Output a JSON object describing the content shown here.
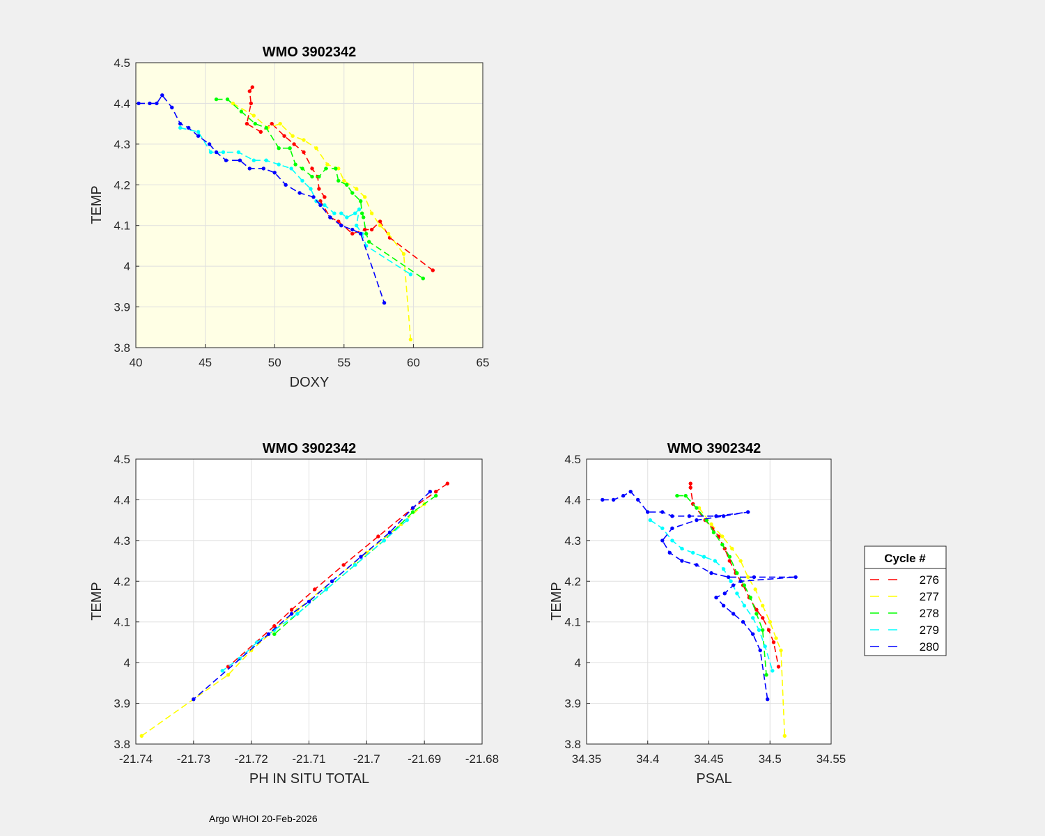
{
  "footer": "Argo WHOI 20-Feb-2026",
  "colors": {
    "figure_bg": "#f0f0f0",
    "axes_bg_doxy": "#ffffe5",
    "axes_bg": "#ffffff",
    "grid": "#dfdfdf",
    "axis": "#262626"
  },
  "legend": {
    "title": "Cycle #",
    "entries": [
      {
        "label": "276",
        "color": "#ff0000"
      },
      {
        "label": "277",
        "color": "#ffff00"
      },
      {
        "label": "278",
        "color": "#00ff00"
      },
      {
        "label": "279",
        "color": "#00ffff"
      },
      {
        "label": "280",
        "color": "#0000ff"
      }
    ]
  },
  "chart_data": [
    {
      "id": "doxy",
      "type": "line",
      "title": "WMO 3902342",
      "xlabel": "DOXY",
      "ylabel": "TEMP",
      "xlim": [
        40,
        65
      ],
      "ylim": [
        3.8,
        4.5
      ],
      "xticks": [
        40,
        45,
        50,
        55,
        60,
        65
      ],
      "xtick_labels": [
        "40",
        "45",
        "50",
        "55",
        "60",
        "65"
      ],
      "yticks": [
        3.8,
        3.9,
        4.0,
        4.1,
        4.2,
        4.3,
        4.4,
        4.5
      ],
      "ytick_labels": [
        "3.8",
        "3.9",
        "4",
        "4.1",
        "4.2",
        "4.3",
        "4.4",
        "4.5"
      ],
      "grid": true,
      "series": [
        {
          "name": "276",
          "color": "#ff0000",
          "x": [
            48.4,
            48.2,
            48.3,
            48.0,
            49.0,
            49.8,
            50.7,
            51.4,
            52.1,
            52.7,
            53.1,
            53.2,
            53.6,
            53.3,
            54.0,
            54.6,
            55.6,
            56.5,
            57.0,
            57.6,
            58.3,
            61.4
          ],
          "y": [
            4.44,
            4.43,
            4.4,
            4.35,
            4.33,
            4.35,
            4.32,
            4.3,
            4.28,
            4.24,
            4.22,
            4.19,
            4.17,
            4.16,
            4.12,
            4.11,
            4.08,
            4.09,
            4.09,
            4.11,
            4.07,
            3.99
          ]
        },
        {
          "name": "277",
          "color": "#ffff00",
          "x": [
            47.0,
            48.5,
            49.5,
            50.4,
            51.3,
            52.1,
            53.0,
            53.8,
            54.6,
            55.0,
            55.9,
            56.5,
            57.0,
            57.6,
            58.2,
            59.3,
            59.8
          ],
          "y": [
            4.4,
            4.37,
            4.34,
            4.35,
            4.32,
            4.31,
            4.29,
            4.25,
            4.24,
            4.21,
            4.19,
            4.17,
            4.13,
            4.1,
            4.08,
            4.03,
            3.82
          ]
        },
        {
          "name": "278",
          "color": "#00ff00",
          "x": [
            45.8,
            46.6,
            47.6,
            48.6,
            49.4,
            50.3,
            51.1,
            51.5,
            52.0,
            52.7,
            53.2,
            53.7,
            54.4,
            54.6,
            55.2,
            55.6,
            56.2,
            56.3,
            56.4,
            56.6,
            56.8,
            60.7
          ],
          "y": [
            4.41,
            4.41,
            4.38,
            4.35,
            4.34,
            4.29,
            4.29,
            4.25,
            4.24,
            4.22,
            4.22,
            4.24,
            4.24,
            4.21,
            4.2,
            4.18,
            4.16,
            4.13,
            4.12,
            4.08,
            4.06,
            3.97
          ]
        },
        {
          "name": "279",
          "color": "#00ffff",
          "x": [
            43.2,
            44.5,
            45.4,
            46.3,
            47.4,
            48.5,
            49.4,
            50.3,
            51.2,
            52.0,
            52.6,
            53.0,
            53.6,
            54.3,
            54.8,
            55.2,
            55.8,
            56.1,
            55.9,
            56.3,
            56.6,
            59.8
          ],
          "y": [
            4.34,
            4.33,
            4.28,
            4.28,
            4.28,
            4.26,
            4.26,
            4.25,
            4.24,
            4.21,
            4.19,
            4.16,
            4.15,
            4.13,
            4.13,
            4.12,
            4.13,
            4.14,
            4.1,
            4.08,
            4.05,
            3.98
          ]
        },
        {
          "name": "280",
          "color": "#0000ff",
          "x": [
            40.2,
            41.0,
            41.5,
            41.9,
            42.6,
            43.2,
            43.8,
            44.5,
            45.3,
            45.8,
            46.5,
            47.5,
            48.2,
            49.2,
            50.0,
            50.8,
            51.8,
            52.8,
            53.3,
            54.0,
            54.8,
            55.6,
            56.2,
            57.9
          ],
          "y": [
            4.4,
            4.4,
            4.4,
            4.42,
            4.39,
            4.35,
            4.34,
            4.32,
            4.3,
            4.28,
            4.26,
            4.26,
            4.24,
            4.24,
            4.23,
            4.2,
            4.18,
            4.17,
            4.15,
            4.12,
            4.1,
            4.09,
            4.08,
            3.91
          ]
        }
      ]
    },
    {
      "id": "ph",
      "type": "line",
      "title": "WMO 3902342",
      "xlabel": "PH IN SITU TOTAL",
      "ylabel": "TEMP",
      "xlim": [
        -21.74,
        -21.68
      ],
      "ylim": [
        3.8,
        4.5
      ],
      "xticks": [
        -21.74,
        -21.73,
        -21.72,
        -21.71,
        -21.7,
        -21.69,
        -21.68
      ],
      "xtick_labels": [
        "-21.74",
        "-21.73",
        "-21.72",
        "-21.71",
        "-21.7",
        "-21.69",
        "-21.68"
      ],
      "yticks": [
        3.8,
        3.9,
        4.0,
        4.1,
        4.2,
        4.3,
        4.4,
        4.5
      ],
      "ytick_labels": [
        "3.8",
        "3.9",
        "4",
        "4.1",
        "4.2",
        "4.3",
        "4.4",
        "4.5"
      ],
      "grid": true,
      "series": [
        {
          "name": "276",
          "color": "#ff0000",
          "x": [
            -21.686,
            -21.688,
            -21.692,
            -21.698,
            -21.704,
            -21.709,
            -21.713,
            -21.716,
            -21.724
          ],
          "y": [
            4.44,
            4.42,
            4.38,
            4.31,
            4.24,
            4.18,
            4.13,
            4.09,
            3.99
          ]
        },
        {
          "name": "277",
          "color": "#ffff00",
          "x": [
            -21.739,
            -21.73,
            -21.724,
            -21.72,
            -21.716,
            -21.712,
            -21.706,
            -21.7,
            -21.694,
            -21.69
          ],
          "y": [
            3.82,
            3.91,
            3.97,
            4.03,
            4.08,
            4.13,
            4.2,
            4.27,
            4.34,
            4.39
          ]
        },
        {
          "name": "278",
          "color": "#00ff00",
          "x": [
            -21.688,
            -21.692,
            -21.697,
            -21.702,
            -21.707,
            -21.712,
            -21.716
          ],
          "y": [
            4.41,
            4.37,
            4.3,
            4.24,
            4.18,
            4.12,
            4.07
          ]
        },
        {
          "name": "279",
          "color": "#00ffff",
          "x": [
            -21.693,
            -21.697,
            -21.702,
            -21.707,
            -21.712,
            -21.716,
            -21.719,
            -21.722,
            -21.725
          ],
          "y": [
            4.35,
            4.3,
            4.24,
            4.18,
            4.12,
            4.08,
            4.05,
            4.01,
            3.98
          ]
        },
        {
          "name": "280",
          "color": "#0000ff",
          "x": [
            -21.689,
            -21.692,
            -21.696,
            -21.701,
            -21.706,
            -21.71,
            -21.713,
            -21.717,
            -21.73
          ],
          "y": [
            4.42,
            4.38,
            4.32,
            4.26,
            4.2,
            4.15,
            4.12,
            4.07,
            3.91
          ]
        }
      ]
    },
    {
      "id": "psal",
      "type": "line",
      "title": "WMO 3902342",
      "xlabel": "PSAL",
      "ylabel": "TEMP",
      "xlim": [
        34.35,
        34.55
      ],
      "ylim": [
        3.8,
        4.5
      ],
      "xticks": [
        34.35,
        34.4,
        34.45,
        34.5,
        34.55
      ],
      "xtick_labels": [
        "34.35",
        "34.4",
        "34.45",
        "34.5",
        "34.55"
      ],
      "yticks": [
        3.8,
        3.9,
        4.0,
        4.1,
        4.2,
        4.3,
        4.4,
        4.5
      ],
      "ytick_labels": [
        "3.8",
        "3.9",
        "4",
        "4.1",
        "4.2",
        "4.3",
        "4.4",
        "4.5"
      ],
      "grid": true,
      "series": [
        {
          "name": "276",
          "color": "#ff0000",
          "x": [
            34.435,
            34.435,
            34.437,
            34.447,
            34.453,
            34.458,
            34.463,
            34.467,
            34.472,
            34.478,
            34.483,
            34.489,
            34.494,
            34.499,
            34.503,
            34.507
          ],
          "y": [
            4.44,
            4.43,
            4.39,
            4.35,
            4.33,
            4.31,
            4.28,
            4.25,
            4.22,
            4.19,
            4.16,
            4.13,
            4.11,
            4.08,
            4.05,
            3.99
          ]
        },
        {
          "name": "277",
          "color": "#ffff00",
          "x": [
            34.442,
            34.452,
            34.461,
            34.469,
            34.476,
            34.482,
            34.488,
            34.494,
            34.5,
            34.505,
            34.509,
            34.512
          ],
          "y": [
            4.38,
            4.34,
            4.31,
            4.28,
            4.25,
            4.21,
            4.18,
            4.14,
            4.1,
            4.06,
            4.03,
            3.82
          ]
        },
        {
          "name": "278",
          "color": "#00ff00",
          "x": [
            34.424,
            34.431,
            34.44,
            34.448,
            34.454,
            34.461,
            34.467,
            34.473,
            34.479,
            34.484,
            34.489,
            34.494,
            34.497
          ],
          "y": [
            4.41,
            4.41,
            4.38,
            4.35,
            4.32,
            4.29,
            4.26,
            4.22,
            4.19,
            4.16,
            4.12,
            4.08,
            3.97
          ]
        },
        {
          "name": "279",
          "color": "#00ffff",
          "x": [
            34.402,
            34.412,
            34.42,
            34.428,
            34.437,
            34.446,
            34.455,
            34.462,
            34.468,
            34.473,
            34.479,
            34.486,
            34.491,
            34.496,
            34.502
          ],
          "y": [
            4.35,
            4.33,
            4.3,
            4.28,
            4.27,
            4.26,
            4.25,
            4.23,
            4.2,
            4.17,
            4.14,
            4.11,
            4.08,
            4.04,
            3.98
          ]
        },
        {
          "name": "280",
          "color": "#0000ff",
          "x": [
            34.363,
            34.372,
            34.38,
            34.386,
            34.392,
            34.4,
            34.412,
            34.42,
            34.434,
            34.456,
            34.482,
            34.462,
            34.44,
            34.42,
            34.412,
            34.418,
            34.428,
            34.44,
            34.452,
            34.466,
            34.487,
            34.521,
            34.476,
            34.47,
            34.463,
            34.456,
            34.462,
            34.47,
            34.478,
            34.486,
            34.492,
            34.498
          ],
          "y": [
            4.4,
            4.4,
            4.41,
            4.42,
            4.4,
            4.37,
            4.37,
            4.36,
            4.36,
            4.36,
            4.37,
            4.36,
            4.35,
            4.33,
            4.3,
            4.27,
            4.25,
            4.24,
            4.22,
            4.21,
            4.21,
            4.21,
            4.2,
            4.19,
            4.17,
            4.16,
            4.14,
            4.12,
            4.1,
            4.07,
            4.03,
            3.91
          ]
        }
      ]
    }
  ]
}
